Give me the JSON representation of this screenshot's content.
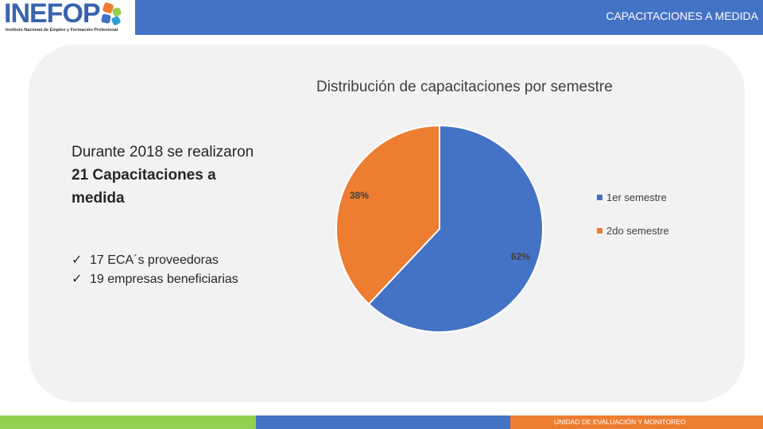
{
  "header": {
    "logo_text": "INEFOP",
    "logo_subtitle": "Instituto Nacional de Empleo y Formación Profesional",
    "title": "CAPACITACIONES A MEDIDA"
  },
  "summary": {
    "line1": "Durante 2018 se realizaron",
    "line2": "21 Capacitaciones a medida",
    "bullets": [
      "17 ECA´s proveedoras",
      "19 empresas beneficiarias"
    ],
    "check_glyph": "ü"
  },
  "chart_data": {
    "type": "pie",
    "title": "Distribución de capacitaciones por semestre",
    "categories": [
      "1er semestre",
      "2do semestre"
    ],
    "values": [
      62,
      38
    ],
    "labels": [
      "62%",
      "38%"
    ],
    "colors": [
      "#4472c4",
      "#ed7d31"
    ],
    "legend_position": "right"
  },
  "footer": {
    "text": "UNIDAD DE EVALUACIÓN Y MONITOREO",
    "colors": [
      "#92d050",
      "#4472c4",
      "#ed7d31"
    ]
  }
}
